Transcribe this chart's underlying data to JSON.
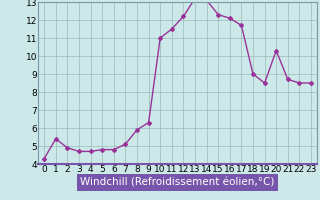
{
  "x": [
    0,
    1,
    2,
    3,
    4,
    5,
    6,
    7,
    8,
    9,
    10,
    11,
    12,
    13,
    14,
    15,
    16,
    17,
    18,
    19,
    20,
    21,
    22,
    23
  ],
  "y": [
    4.3,
    5.4,
    4.9,
    4.7,
    4.7,
    4.8,
    4.8,
    5.1,
    5.9,
    6.3,
    11.0,
    11.5,
    12.2,
    13.2,
    13.1,
    12.3,
    12.1,
    11.7,
    9.0,
    8.5,
    10.3,
    8.7,
    8.5,
    8.5
  ],
  "xlabel": "Windchill (Refroidissement éolien,°C)",
  "ylim": [
    4,
    13
  ],
  "xlim": [
    -0.5,
    23.5
  ],
  "yticks": [
    4,
    5,
    6,
    7,
    8,
    9,
    10,
    11,
    12,
    13
  ],
  "xticks": [
    0,
    1,
    2,
    3,
    4,
    5,
    6,
    7,
    8,
    9,
    10,
    11,
    12,
    13,
    14,
    15,
    16,
    17,
    18,
    19,
    20,
    21,
    22,
    23
  ],
  "line_color": "#993399",
  "marker": "D",
  "marker_size": 2.0,
  "bg_color": "#cce8e8",
  "grid_color": "#99bbbb",
  "border_color": "#7799aa",
  "xlabel_bg": "#7755aa",
  "xlabel_color": "#ffffff",
  "xlabel_fontsize": 7.5,
  "tick_fontsize": 6.5,
  "line_width": 1.0
}
